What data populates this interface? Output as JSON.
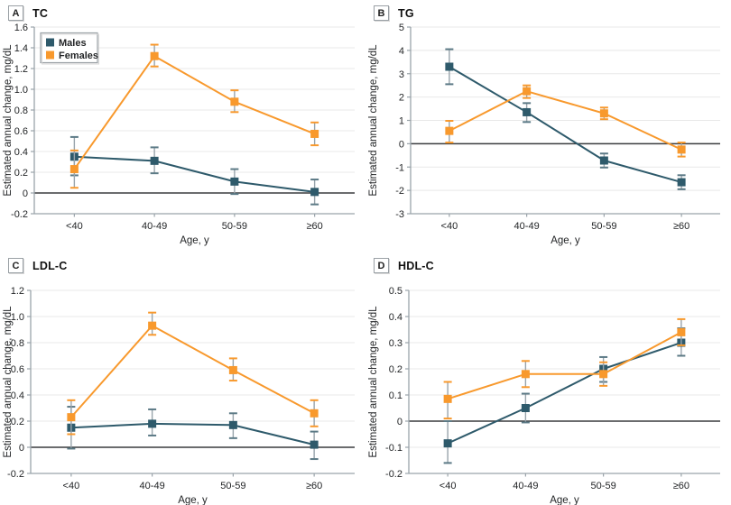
{
  "figure": {
    "colors": {
      "males": "#2E5A6B",
      "females": "#F8992D",
      "males_cap": "#5C7A86",
      "females_cap": "#F8992D",
      "error_line": "#98A4AB",
      "grid": "#E8E8E8",
      "axis": "#9AA4AA",
      "zero_line": "#3A3C3E",
      "text": "#232527",
      "legend_border": "#9aa0a5"
    },
    "legend": {
      "items": [
        "Males",
        "Females"
      ]
    },
    "x_label": "Age, y",
    "y_label": "Estimated annual change, mg/dL"
  },
  "chart_data": [
    {
      "type": "line",
      "panel": "A",
      "title": "TC",
      "categories": [
        "<40",
        "40-49",
        "50-59",
        "≥60"
      ],
      "xlabel": "Age, y",
      "ylabel": "Estimated annual change, mg/dL",
      "ylim": [
        -0.2,
        1.6
      ],
      "ytick_values": [
        1.6,
        1.4,
        1.2,
        1.0,
        0.8,
        0.6,
        0.4,
        0.2,
        0,
        -0.2
      ],
      "ytick_labels": [
        "1.6",
        "1.4",
        "1.2",
        "1.0",
        "0.8",
        "0.6",
        "0.4",
        "0.2",
        "0",
        "-0.2"
      ],
      "grid": true,
      "show_legend": true,
      "legend_position": "top-left",
      "series": [
        {
          "name": "Males",
          "values": [
            0.35,
            0.31,
            0.11,
            0.01
          ],
          "ci_low": [
            0.17,
            0.19,
            -0.01,
            -0.11
          ],
          "ci_high": [
            0.54,
            0.44,
            0.23,
            0.13
          ]
        },
        {
          "name": "Females",
          "values": [
            0.23,
            1.32,
            0.88,
            0.57
          ],
          "ci_low": [
            0.05,
            1.22,
            0.78,
            0.46
          ],
          "ci_high": [
            0.41,
            1.43,
            0.99,
            0.68
          ]
        }
      ]
    },
    {
      "type": "line",
      "panel": "B",
      "title": "TG",
      "categories": [
        "<40",
        "40-49",
        "50-59",
        "≥60"
      ],
      "xlabel": "Age, y",
      "ylabel": "Estimated annual change, mg/dL",
      "ylim": [
        -3,
        5
      ],
      "ytick_values": [
        5,
        4,
        3,
        2,
        1,
        0,
        -1,
        -2,
        -3
      ],
      "ytick_labels": [
        "5",
        "4",
        "3",
        "2",
        "1",
        "0",
        "-1",
        "-2",
        "-3"
      ],
      "grid": true,
      "show_legend": false,
      "legend_position": null,
      "series": [
        {
          "name": "Males",
          "values": [
            3.3,
            1.35,
            -0.72,
            -1.65
          ],
          "ci_low": [
            2.55,
            0.93,
            -1.02,
            -1.95
          ],
          "ci_high": [
            4.05,
            1.74,
            -0.42,
            -1.35
          ]
        },
        {
          "name": "Females",
          "values": [
            0.55,
            2.25,
            1.3,
            -0.25
          ],
          "ci_low": [
            0.05,
            1.96,
            1.05,
            -0.55
          ],
          "ci_high": [
            0.98,
            2.5,
            1.55,
            0.05
          ]
        }
      ]
    },
    {
      "type": "line",
      "panel": "C",
      "title": "LDL-C",
      "categories": [
        "<40",
        "40-49",
        "50-59",
        "≥60"
      ],
      "xlabel": "Age, y",
      "ylabel": "Estimated annual change, mg/dL",
      "ylim": [
        -0.2,
        1.2
      ],
      "ytick_values": [
        1.2,
        1.0,
        0.8,
        0.6,
        0.4,
        0.2,
        0,
        -0.2
      ],
      "ytick_labels": [
        "1.2",
        "1.0",
        "0.8",
        "0.6",
        "0.4",
        "0.2",
        "0",
        "-0.2"
      ],
      "grid": true,
      "show_legend": false,
      "legend_position": null,
      "series": [
        {
          "name": "Males",
          "values": [
            0.15,
            0.18,
            0.17,
            0.02
          ],
          "ci_low": [
            -0.01,
            0.09,
            0.07,
            -0.09
          ],
          "ci_high": [
            0.31,
            0.29,
            0.26,
            0.12
          ]
        },
        {
          "name": "Females",
          "values": [
            0.23,
            0.93,
            0.59,
            0.26
          ],
          "ci_low": [
            0.1,
            0.86,
            0.51,
            0.16
          ],
          "ci_high": [
            0.36,
            1.03,
            0.68,
            0.36
          ]
        }
      ]
    },
    {
      "type": "line",
      "panel": "D",
      "title": "HDL-C",
      "categories": [
        "<40",
        "40-49",
        "50-59",
        "≥60"
      ],
      "xlabel": "Age, y",
      "ylabel": "Estimated annual change, mg/dL",
      "ylim": [
        -0.2,
        0.5
      ],
      "ytick_values": [
        0.5,
        0.4,
        0.3,
        0.2,
        0.1,
        0,
        -0.1,
        -0.2
      ],
      "ytick_labels": [
        "0.5",
        "0.4",
        "0.3",
        "0.2",
        "0.1",
        "0",
        "-0.1",
        "-0.2"
      ],
      "grid": true,
      "show_legend": false,
      "legend_position": null,
      "series": [
        {
          "name": "Males",
          "values": [
            -0.085,
            0.05,
            0.2,
            0.3
          ],
          "ci_low": [
            -0.16,
            -0.005,
            0.15,
            0.25
          ],
          "ci_high": [
            0.0,
            0.105,
            0.245,
            0.355
          ]
        },
        {
          "name": "Females",
          "values": [
            0.085,
            0.18,
            0.18,
            0.34
          ],
          "ci_low": [
            0.01,
            0.13,
            0.135,
            0.29
          ],
          "ci_high": [
            0.15,
            0.23,
            0.225,
            0.39
          ]
        }
      ]
    }
  ]
}
